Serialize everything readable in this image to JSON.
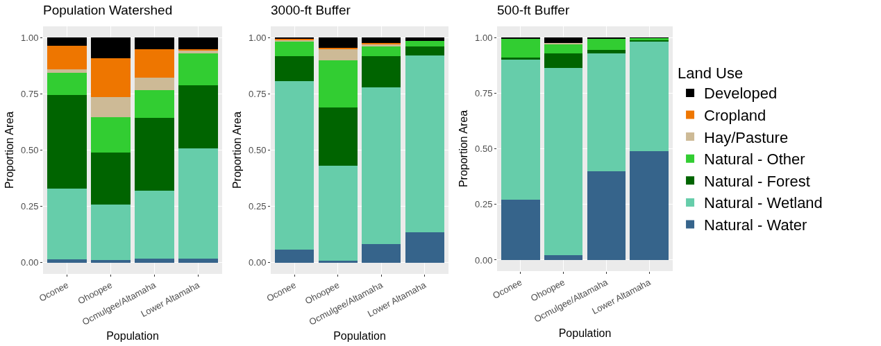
{
  "chart_data": [
    {
      "type": "bar",
      "stacked": true,
      "title": "Population Watershed",
      "xlabel": "Population",
      "ylabel": "Proportion Area",
      "categories": [
        "Oconee",
        "Ohoopee",
        "Ocmulgee/Altamaha",
        "Lower Altamaha"
      ],
      "ylim": [
        -0.05,
        1.05
      ],
      "yticks": [
        {
          "value": 0,
          "label": "0.00"
        },
        {
          "value": 0.25,
          "label": "0.25"
        },
        {
          "value": 0.5,
          "label": "0.50"
        },
        {
          "value": 0.75,
          "label": "0.75"
        },
        {
          "value": 1,
          "label": "1.00"
        }
      ],
      "grid": true,
      "legend": false,
      "series": [
        {
          "color": "#36648b",
          "values": [
            0.014,
            0.011,
            0.017,
            0.017
          ]
        },
        {
          "color": "#66cdaa",
          "values": [
            0.315,
            0.246,
            0.303,
            0.492
          ]
        },
        {
          "color": "#006400",
          "values": [
            0.417,
            0.232,
            0.322,
            0.278
          ]
        },
        {
          "color": "#32cd32",
          "values": [
            0.099,
            0.158,
            0.126,
            0.143
          ]
        },
        {
          "color": "#cdba96",
          "values": [
            0.015,
            0.089,
            0.054,
            0.014
          ]
        },
        {
          "color": "#ee7600",
          "values": [
            0.104,
            0.173,
            0.125,
            0.003
          ]
        },
        {
          "color": "#000000",
          "values": [
            0.036,
            0.091,
            0.053,
            0.053
          ]
        }
      ]
    },
    {
      "type": "bar",
      "stacked": true,
      "title": "3000-ft Buffer",
      "xlabel": "Population",
      "ylabel": "Proportion Area",
      "categories": [
        "Oconee",
        "Ohoopee",
        "Ocmulgee/Altamaha",
        "Lower Altamaha"
      ],
      "ylim": [
        -0.05,
        1.05
      ],
      "yticks": [
        {
          "value": 0,
          "label": "0.00"
        },
        {
          "value": 0.25,
          "label": "0.25"
        },
        {
          "value": 0.5,
          "label": "0.50"
        },
        {
          "value": 0.75,
          "label": "0.75"
        },
        {
          "value": 1,
          "label": "1.00"
        }
      ],
      "grid": true,
      "legend": false,
      "series": [
        {
          "color": "#36648b",
          "values": [
            0.059,
            0.009,
            0.083,
            0.136
          ]
        },
        {
          "color": "#66cdaa",
          "values": [
            0.747,
            0.423,
            0.695,
            0.786
          ]
        },
        {
          "color": "#006400",
          "values": [
            0.113,
            0.257,
            0.139,
            0.038
          ]
        },
        {
          "color": "#32cd32",
          "values": [
            0.065,
            0.211,
            0.044,
            0.026
          ]
        },
        {
          "color": "#cdba96",
          "values": [
            0.005,
            0.047,
            0.008,
            0
          ]
        },
        {
          "color": "#ee7600",
          "values": [
            0.006,
            0.007,
            0.007,
            0
          ]
        },
        {
          "color": "#000000",
          "values": [
            0.005,
            0.046,
            0.024,
            0.014
          ]
        }
      ]
    },
    {
      "type": "bar",
      "stacked": true,
      "title": "500-ft Buffer",
      "xlabel": "Population",
      "ylabel": "Proportion Area",
      "legend_title": "Land Use",
      "categories": [
        "Oconee",
        "Ohoopee",
        "Ocmulgee/Altamaha",
        "Lower Altamaha"
      ],
      "ylim": [
        -0.05,
        1.05
      ],
      "yticks": [
        {
          "value": 0,
          "label": "0.00"
        },
        {
          "value": 0.25,
          "label": "0.25"
        },
        {
          "value": 0.5,
          "label": "0.50"
        },
        {
          "value": 0.75,
          "label": "0.75"
        },
        {
          "value": 1,
          "label": "1.00"
        }
      ],
      "grid": true,
      "legend": "right",
      "series": [
        {
          "name": "Natural - Water",
          "color": "#36648b",
          "values": [
            0.271,
            0.022,
            0.4,
            0.489
          ]
        },
        {
          "name": "Natural - Wetland",
          "color": "#66cdaa",
          "values": [
            0.628,
            0.841,
            0.529,
            0.495
          ]
        },
        {
          "name": "Natural - Forest",
          "color": "#006400",
          "values": [
            0.012,
            0.066,
            0.015,
            0.005
          ]
        },
        {
          "name": "Natural - Other",
          "color": "#32cd32",
          "values": [
            0.084,
            0.042,
            0.051,
            0.009
          ]
        },
        {
          "name": "Hay/Pasture",
          "color": "#cdba96",
          "values": [
            0,
            0.004,
            0,
            0
          ]
        },
        {
          "name": "Cropland",
          "color": "#ee7600",
          "values": [
            0,
            0,
            0,
            0
          ]
        },
        {
          "name": "Developed",
          "color": "#000000",
          "values": [
            0.005,
            0.025,
            0.005,
            0.002
          ]
        }
      ]
    }
  ]
}
